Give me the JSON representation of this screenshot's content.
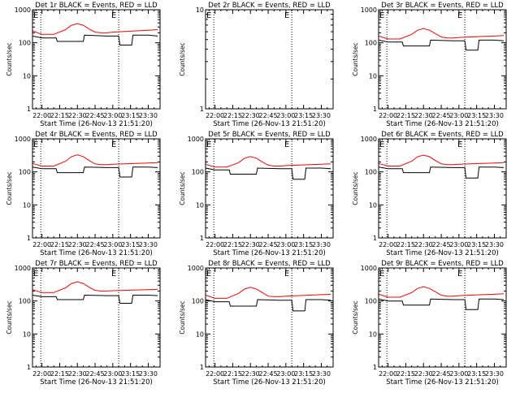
{
  "chart_data": [
    {
      "type": "line",
      "title": "Det 1r BLACK = Events, RED = LLD",
      "xlabel": "Start Time (26-Nov-13 21:51:20)",
      "ylabel": "Counts/sec",
      "y_scale": "log",
      "ylim": [
        1,
        1000
      ],
      "yticks": [
        "1",
        "10",
        "100",
        "1000"
      ],
      "xticks": [
        "22:00",
        "22:15",
        "22:30",
        "22:45",
        "23:00",
        "23:15",
        "23:30"
      ],
      "xlim_minutes": [
        -8,
        100
      ],
      "markers": {
        "text": "E",
        "positions_min": [
          -8,
          58
        ]
      },
      "dotted_lines_min": [
        -1,
        65
      ],
      "series": [
        {
          "color": "#ff0000",
          "x": [
            -8,
            0,
            10,
            20,
            25,
            30,
            35,
            40,
            45,
            50,
            55,
            60,
            70,
            80,
            90,
            98
          ],
          "y": [
            230,
            180,
            180,
            250,
            340,
            380,
            340,
            260,
            210,
            200,
            200,
            210,
            220,
            230,
            240,
            250
          ]
        },
        {
          "color": "#000000",
          "x": [
            -8,
            0,
            12,
            13,
            35,
            36,
            55,
            56,
            65,
            66,
            76,
            77,
            90,
            98
          ],
          "y": [
            160,
            140,
            140,
            110,
            110,
            170,
            160,
            160,
            160,
            85,
            85,
            170,
            170,
            160
          ]
        }
      ]
    },
    {
      "type": "line",
      "title": "Det 2r BLACK = Events, RED = LLD",
      "xlabel": "Start Time (26-Nov-13 21:51:20)",
      "ylabel": "Counts/sec",
      "y_scale": "log",
      "ylim": [
        1,
        10
      ],
      "yticks": [
        "1",
        "10"
      ],
      "xticks": [
        "22:00",
        "22:15",
        "22:30",
        "22:45",
        "23:00",
        "23:15",
        "23:30"
      ],
      "xlim_minutes": [
        -8,
        100
      ],
      "markers": {
        "text": "E",
        "positions_min": [
          -8,
          58
        ]
      },
      "dotted_lines_min": [
        -1,
        65
      ],
      "series": []
    },
    {
      "type": "line",
      "title": "Det 3r BLACK = Events, RED = LLD",
      "xlabel": "Start Time (26-Nov-13 21:51:20)",
      "ylabel": "Counts/sec",
      "y_scale": "log",
      "ylim": [
        1,
        1000
      ],
      "yticks": [
        "1",
        "10",
        "100",
        "1000"
      ],
      "xticks": [
        "22:00",
        "22:15",
        "22:30",
        "22:45",
        "23:00",
        "23:15",
        "23:30"
      ],
      "xlim_minutes": [
        -8,
        100
      ],
      "markers": {
        "text": "E",
        "positions_min": [
          -8,
          58
        ]
      },
      "dotted_lines_min": [
        -1,
        65
      ],
      "series": [
        {
          "color": "#ff0000",
          "x": [
            -8,
            0,
            10,
            20,
            25,
            30,
            35,
            40,
            45,
            50,
            55,
            60,
            70,
            80,
            90,
            98
          ],
          "y": [
            160,
            130,
            130,
            180,
            240,
            270,
            240,
            190,
            150,
            140,
            140,
            145,
            150,
            155,
            160,
            165
          ]
        },
        {
          "color": "#000000",
          "x": [
            -8,
            0,
            12,
            13,
            35,
            36,
            55,
            56,
            65,
            66,
            76,
            77,
            90,
            98
          ],
          "y": [
            120,
            105,
            105,
            80,
            80,
            120,
            115,
            115,
            115,
            60,
            60,
            120,
            120,
            115
          ]
        }
      ]
    },
    {
      "type": "line",
      "title": "Det 4r BLACK = Events, RED = LLD",
      "xlabel": "Start Time (26-Nov-13 21:51:20)",
      "ylabel": "Counts/sec",
      "y_scale": "log",
      "ylim": [
        1,
        1000
      ],
      "yticks": [
        "1",
        "10",
        "100",
        "1000"
      ],
      "xticks": [
        "22:00",
        "22:15",
        "22:30",
        "22:45",
        "23:00",
        "23:15",
        "23:30"
      ],
      "xlim_minutes": [
        -8,
        100
      ],
      "markers": {
        "text": "E",
        "positions_min": [
          -8,
          58
        ]
      },
      "dotted_lines_min": [
        -1,
        65
      ],
      "series": [
        {
          "color": "#ff0000",
          "x": [
            -8,
            0,
            10,
            20,
            25,
            30,
            35,
            40,
            45,
            50,
            55,
            60,
            70,
            80,
            90,
            98
          ],
          "y": [
            180,
            150,
            150,
            210,
            290,
            330,
            290,
            220,
            175,
            165,
            165,
            170,
            175,
            180,
            185,
            190
          ]
        },
        {
          "color": "#000000",
          "x": [
            -8,
            0,
            12,
            13,
            35,
            36,
            55,
            56,
            65,
            66,
            76,
            77,
            90,
            98
          ],
          "y": [
            140,
            125,
            125,
            95,
            95,
            140,
            135,
            135,
            135,
            70,
            70,
            140,
            140,
            135
          ]
        }
      ]
    },
    {
      "type": "line",
      "title": "Det 5r BLACK = Events, RED = LLD",
      "xlabel": "Start Time (26-Nov-13 21:51:20)",
      "ylabel": "Counts/sec",
      "y_scale": "log",
      "ylim": [
        1,
        1000
      ],
      "yticks": [
        "1",
        "10",
        "100",
        "1000"
      ],
      "xticks": [
        "22:00",
        "22:15",
        "22:30",
        "22:45",
        "23:00",
        "23:15",
        "23:30"
      ],
      "xlim_minutes": [
        -8,
        100
      ],
      "markers": {
        "text": "E",
        "positions_min": [
          -8,
          58
        ]
      },
      "dotted_lines_min": [
        -1,
        65
      ],
      "series": [
        {
          "color": "#ff0000",
          "x": [
            -8,
            0,
            10,
            20,
            25,
            30,
            35,
            40,
            45,
            50,
            55,
            60,
            70,
            80,
            90,
            98
          ],
          "y": [
            170,
            140,
            140,
            190,
            260,
            290,
            260,
            200,
            160,
            150,
            150,
            155,
            160,
            165,
            170,
            175
          ]
        },
        {
          "color": "#000000",
          "x": [
            -8,
            0,
            12,
            13,
            35,
            36,
            55,
            56,
            65,
            66,
            76,
            77,
            90,
            98
          ],
          "y": [
            130,
            115,
            115,
            85,
            85,
            130,
            125,
            125,
            125,
            60,
            60,
            130,
            130,
            125
          ]
        }
      ]
    },
    {
      "type": "line",
      "title": "Det 6r BLACK = Events, RED = LLD",
      "xlabel": "Start Time (26-Nov-13 21:51:20)",
      "ylabel": "Counts/sec",
      "y_scale": "log",
      "ylim": [
        1,
        1000
      ],
      "yticks": [
        "1",
        "10",
        "100",
        "1000"
      ],
      "xticks": [
        "22:00",
        "22:15",
        "22:30",
        "22:45",
        "23:00",
        "23:15",
        "23:30"
      ],
      "xlim_minutes": [
        -8,
        100
      ],
      "markers": {
        "text": "E",
        "positions_min": [
          -8,
          58
        ]
      },
      "dotted_lines_min": [
        -1,
        65
      ],
      "series": [
        {
          "color": "#ff0000",
          "x": [
            -8,
            0,
            10,
            20,
            25,
            30,
            35,
            40,
            45,
            50,
            55,
            60,
            70,
            80,
            90,
            98
          ],
          "y": [
            180,
            150,
            150,
            210,
            290,
            320,
            290,
            220,
            175,
            165,
            165,
            170,
            175,
            180,
            185,
            190
          ]
        },
        {
          "color": "#000000",
          "x": [
            -8,
            0,
            12,
            13,
            35,
            36,
            55,
            56,
            65,
            66,
            76,
            77,
            90,
            98
          ],
          "y": [
            140,
            125,
            125,
            95,
            95,
            140,
            135,
            135,
            135,
            65,
            65,
            140,
            140,
            135
          ]
        }
      ]
    },
    {
      "type": "line",
      "title": "Det 7r BLACK = Events, RED = LLD",
      "xlabel": "Start Time (26-Nov-13 21:51:20)",
      "ylabel": "Counts/sec",
      "y_scale": "log",
      "ylim": [
        1,
        1000
      ],
      "yticks": [
        "1",
        "10",
        "100",
        "1000"
      ],
      "xticks": [
        "22:00",
        "22:15",
        "22:30",
        "22:45",
        "23:00",
        "23:15",
        "23:30"
      ],
      "xlim_minutes": [
        -8,
        100
      ],
      "markers": {
        "text": "E",
        "positions_min": [
          -8,
          58
        ]
      },
      "dotted_lines_min": [
        -1,
        65
      ],
      "series": [
        {
          "color": "#ff0000",
          "x": [
            -8,
            0,
            10,
            20,
            25,
            30,
            35,
            40,
            45,
            50,
            55,
            60,
            70,
            80,
            90,
            98
          ],
          "y": [
            220,
            180,
            180,
            250,
            340,
            380,
            340,
            260,
            210,
            200,
            200,
            205,
            210,
            215,
            220,
            225
          ]
        },
        {
          "color": "#000000",
          "x": [
            -8,
            0,
            12,
            13,
            35,
            36,
            55,
            56,
            65,
            66,
            76,
            77,
            90,
            98
          ],
          "y": [
            150,
            135,
            135,
            110,
            110,
            150,
            145,
            145,
            145,
            85,
            85,
            150,
            150,
            145
          ]
        }
      ]
    },
    {
      "type": "line",
      "title": "Det 8r BLACK = Events, RED = LLD",
      "xlabel": "Start Time (26-Nov-13 21:51:20)",
      "ylabel": "Counts/sec",
      "y_scale": "log",
      "ylim": [
        1,
        1000
      ],
      "yticks": [
        "1",
        "10",
        "100",
        "1000"
      ],
      "xticks": [
        "22:00",
        "22:15",
        "22:30",
        "22:45",
        "23:00",
        "23:15",
        "23:30"
      ],
      "xlim_minutes": [
        -8,
        100
      ],
      "markers": {
        "text": "E",
        "positions_min": [
          -8,
          58
        ]
      },
      "dotted_lines_min": [
        -1,
        65
      ],
      "series": [
        {
          "color": "#ff0000",
          "x": [
            -8,
            0,
            10,
            20,
            25,
            30,
            35,
            40,
            45,
            50,
            55,
            60,
            70,
            80,
            90,
            98
          ],
          "y": [
            150,
            120,
            120,
            170,
            230,
            260,
            230,
            180,
            140,
            135,
            135,
            140,
            145,
            150,
            155,
            160
          ]
        },
        {
          "color": "#000000",
          "x": [
            -8,
            0,
            12,
            13,
            35,
            36,
            55,
            56,
            65,
            66,
            76,
            77,
            90,
            98
          ],
          "y": [
            110,
            95,
            95,
            70,
            70,
            110,
            105,
            105,
            105,
            50,
            50,
            110,
            110,
            105
          ]
        }
      ]
    },
    {
      "type": "line",
      "title": "Det 9r BLACK = Events, RED = LLD",
      "xlabel": "Start Time (26-Nov-13 21:51:20)",
      "ylabel": "Counts/sec",
      "y_scale": "log",
      "ylim": [
        1,
        1000
      ],
      "yticks": [
        "1",
        "10",
        "100",
        "1000"
      ],
      "xticks": [
        "22:00",
        "22:15",
        "22:30",
        "22:45",
        "23:00",
        "23:15",
        "23:30"
      ],
      "xlim_minutes": [
        -8,
        100
      ],
      "markers": {
        "text": "E",
        "positions_min": [
          -8,
          58
        ]
      },
      "dotted_lines_min": [
        -1,
        65
      ],
      "series": [
        {
          "color": "#ff0000",
          "x": [
            -8,
            0,
            10,
            20,
            25,
            30,
            35,
            40,
            45,
            50,
            55,
            60,
            70,
            80,
            90,
            98
          ],
          "y": [
            160,
            130,
            130,
            180,
            240,
            270,
            240,
            190,
            150,
            140,
            140,
            145,
            150,
            155,
            160,
            165
          ]
        },
        {
          "color": "#000000",
          "x": [
            -8,
            0,
            12,
            13,
            35,
            36,
            55,
            56,
            65,
            66,
            76,
            77,
            90,
            98
          ],
          "y": [
            115,
            100,
            100,
            75,
            75,
            115,
            110,
            110,
            110,
            55,
            55,
            115,
            115,
            110
          ]
        }
      ]
    }
  ]
}
